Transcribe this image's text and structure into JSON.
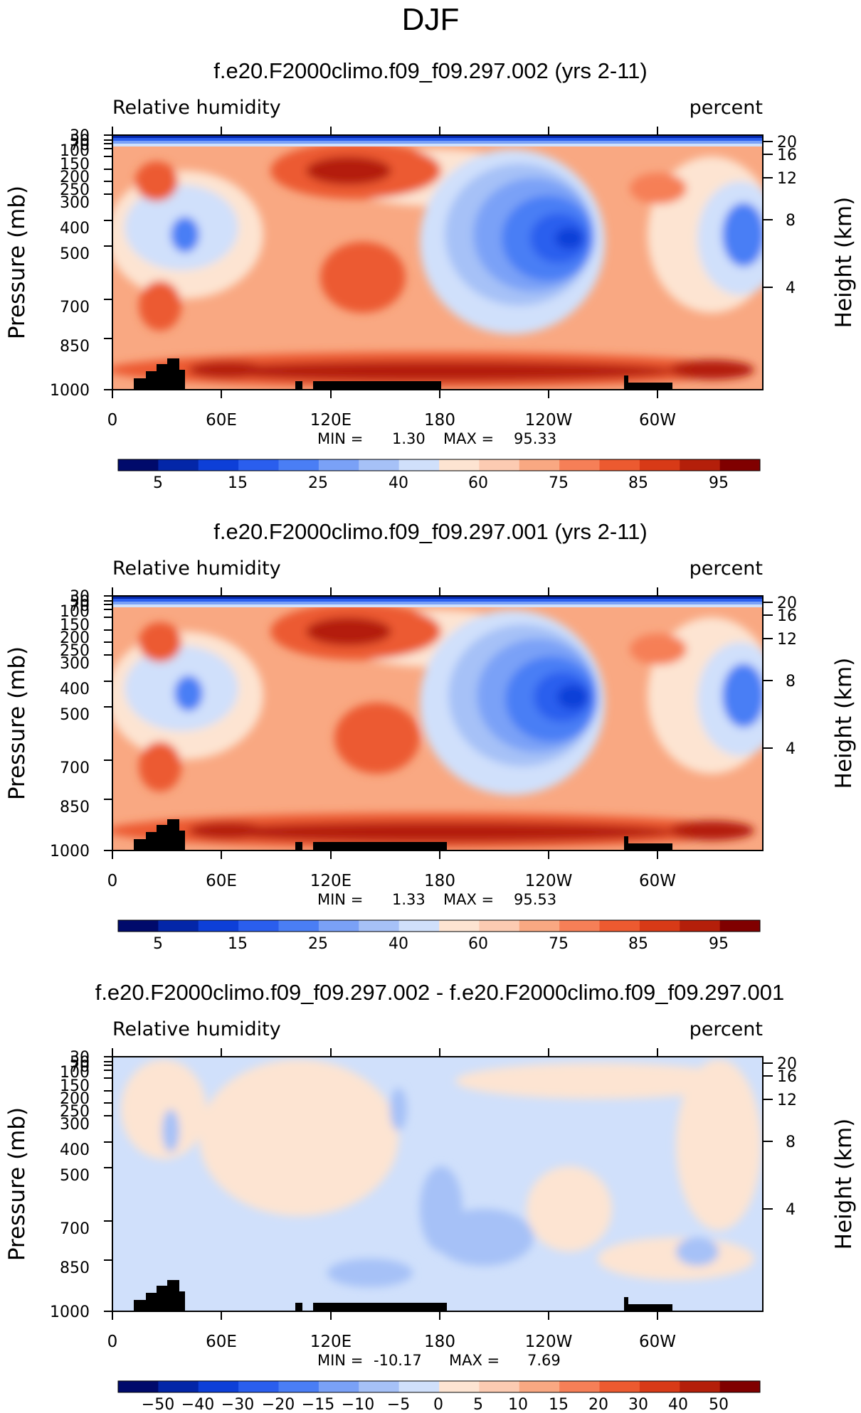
{
  "figure": {
    "title": "DJF"
  },
  "chart_data": [
    {
      "type": "heatmap",
      "title": "f.e20.F2000climo.f09_f09.297.002 (yrs 2-11)",
      "variable": "Relative humidity",
      "units": "percent",
      "ylabel": "Pressure (mb)",
      "y2label": "Height (km)",
      "x_ticks": [
        "0",
        "60E",
        "120E",
        "180",
        "120W",
        "60W"
      ],
      "y_ticks": [
        30,
        50,
        70,
        100,
        150,
        200,
        250,
        300,
        400,
        500,
        700,
        850,
        1000
      ],
      "y2_ticks": [
        20,
        16,
        12,
        8,
        4
      ],
      "min_label": "MIN =",
      "min_value": "1.30",
      "max_label": "MAX =",
      "max_value": "95.33",
      "colorbar_labels": [
        "5",
        "15",
        "25",
        "40",
        "60",
        "75",
        "85",
        "95"
      ]
    },
    {
      "type": "heatmap",
      "title": "f.e20.F2000climo.f09_f09.297.001 (yrs 2-11)",
      "variable": "Relative humidity",
      "units": "percent",
      "ylabel": "Pressure (mb)",
      "y2label": "Height (km)",
      "x_ticks": [
        "0",
        "60E",
        "120E",
        "180",
        "120W",
        "60W"
      ],
      "y_ticks": [
        30,
        50,
        70,
        100,
        150,
        200,
        250,
        300,
        400,
        500,
        700,
        850,
        1000
      ],
      "y2_ticks": [
        20,
        16,
        12,
        8,
        4
      ],
      "min_label": "MIN =",
      "min_value": "1.33",
      "max_label": "MAX =",
      "max_value": "95.53",
      "colorbar_labels": [
        "5",
        "15",
        "25",
        "40",
        "60",
        "75",
        "85",
        "95"
      ]
    },
    {
      "type": "heatmap",
      "title": "f.e20.F2000climo.f09_f09.297.002 - f.e20.F2000climo.f09_f09.297.001",
      "variable": "Relative humidity",
      "units": "percent",
      "ylabel": "Pressure (mb)",
      "y2label": "Height (km)",
      "x_ticks": [
        "0",
        "60E",
        "120E",
        "180",
        "120W",
        "60W"
      ],
      "y_ticks": [
        30,
        50,
        70,
        100,
        150,
        200,
        250,
        300,
        400,
        500,
        700,
        850,
        1000
      ],
      "y2_ticks": [
        20,
        16,
        12,
        8,
        4
      ],
      "min_label": "MIN =",
      "min_value": "-10.17",
      "max_label": "MAX =",
      "max_value": "7.69",
      "colorbar_labels": [
        "−50",
        "−40",
        "−30",
        "−20",
        "−15",
        "−10",
        "−5",
        "0",
        "5",
        "10",
        "15",
        "20",
        "30",
        "40",
        "50"
      ]
    }
  ],
  "colors": {
    "scale": [
      "#000a6b",
      "#0326a8",
      "#0d3fd8",
      "#2a5eee",
      "#4a7ef5",
      "#7aa1f7",
      "#a6c1f7",
      "#d0e0fb",
      "#fde4d2",
      "#fccbb2",
      "#f9a882",
      "#f67f57",
      "#ec5a30",
      "#d83a17",
      "#b41f0a",
      "#800000"
    ],
    "terrain": "#000000"
  }
}
